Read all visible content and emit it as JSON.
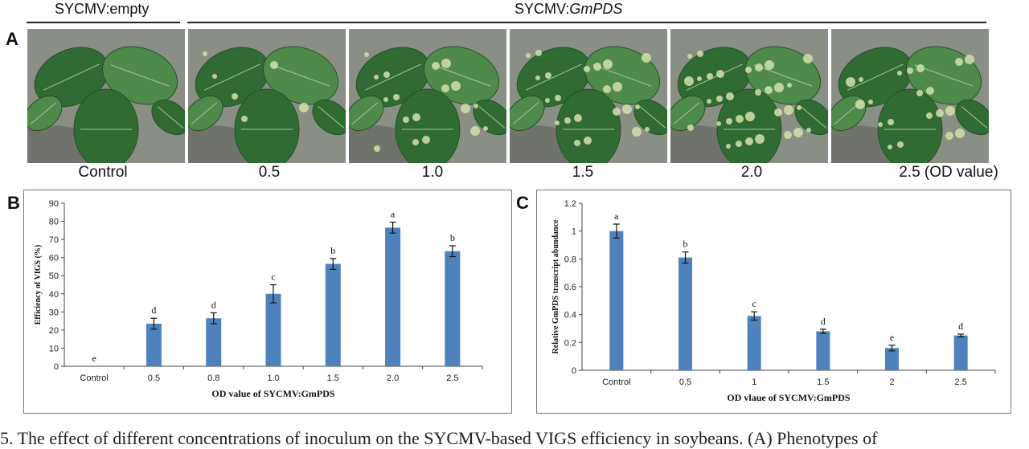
{
  "figure": {
    "header_left": "SYCMV:empty",
    "header_right_prefix": "SYCMV:",
    "header_right_gene": "GmPDS",
    "panel_a_letter": "A",
    "panel_b_letter": "B",
    "panel_c_letter": "C",
    "photos": [
      {
        "label": "Control",
        "name": "leaf-photo-control"
      },
      {
        "label": "0.5",
        "name": "leaf-photo-0-5"
      },
      {
        "label": "1.0",
        "name": "leaf-photo-1-0"
      },
      {
        "label": "1.5",
        "name": "leaf-photo-1-5"
      },
      {
        "label": "2.0",
        "name": "leaf-photo-2-0"
      },
      {
        "label": "2.5 (OD value)",
        "name": "leaf-photo-2-5"
      }
    ],
    "photo_colors": {
      "leaf": "#4e8a4a",
      "leaf_dark": "#2f6b33",
      "bleach": "#d4e0a8",
      "background": "#8a8f86"
    },
    "caption": "5. The effect of different concentrations of inoculum on the SYCMV-based VIGS efficiency in soybeans. (A) Phenotypes of"
  },
  "chart_data": [
    {
      "type": "bar",
      "panel": "B",
      "categories": [
        "Control",
        "0.5",
        "0.8",
        "1.0",
        "1.5",
        "2.0",
        "2.5"
      ],
      "values": [
        0,
        23.5,
        26.5,
        40,
        56.5,
        76.5,
        63.5
      ],
      "errors": [
        0,
        3,
        3,
        5,
        3,
        3,
        3
      ],
      "letters": [
        "e",
        "d",
        "d",
        "c",
        "b",
        "a",
        "b"
      ],
      "xlabel": "OD value of SYCMV:GmPDS",
      "ylabel": "Efficiency of VIGS (%)",
      "ylim": [
        0,
        90
      ],
      "yticks": [
        "0",
        "10",
        "20",
        "30",
        "40",
        "50",
        "60",
        "70",
        "80",
        "90"
      ],
      "bar_color": "#4f81bd",
      "grid": false
    },
    {
      "type": "bar",
      "panel": "C",
      "categories": [
        "Control",
        "0.5",
        "1",
        "1.5",
        "2",
        "2.5"
      ],
      "values": [
        1.0,
        0.81,
        0.39,
        0.28,
        0.16,
        0.25
      ],
      "errors": [
        0.05,
        0.04,
        0.03,
        0.015,
        0.02,
        0.01
      ],
      "letters": [
        "a",
        "b",
        "c",
        "d",
        "e",
        "d"
      ],
      "xlabel": "OD vlaue of SYCMV:GmPDS",
      "ylabel": "Relative GmPDS transcript abundance",
      "ylim": [
        0,
        1.2
      ],
      "yticks": [
        "0",
        "0.2",
        "0.4",
        "0.6",
        "0.8",
        "1",
        "1.2"
      ],
      "bar_color": "#4f81bd",
      "grid": false
    }
  ]
}
